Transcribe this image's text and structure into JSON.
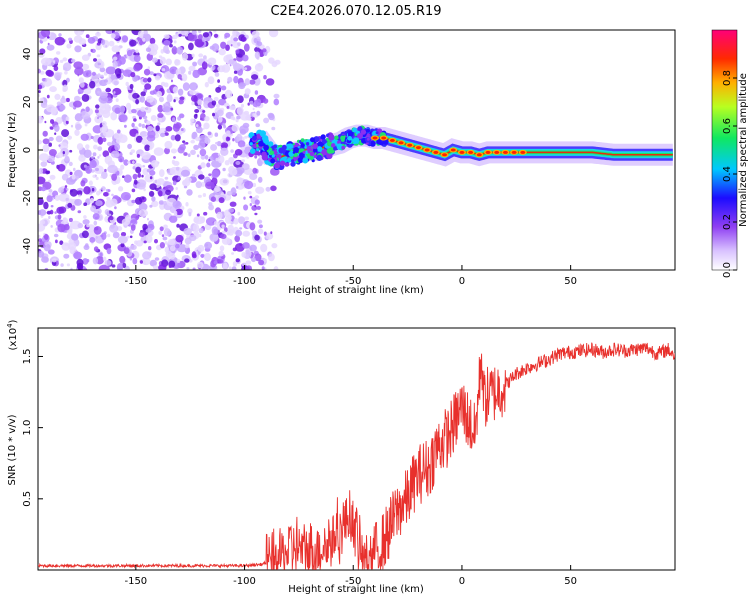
{
  "title": "C2E4.2026.070.12.05.R19",
  "chart_data": [
    {
      "type": "heatmap",
      "xlabel": "Height of straight line (km)",
      "ylabel": "Frequency (Hz)",
      "xlim": [
        -195,
        98
      ],
      "ylim": [
        -50,
        50
      ],
      "xticks": [
        -150,
        -100,
        -50,
        0,
        50
      ],
      "yticks": [
        -40,
        -20,
        0,
        20,
        40
      ],
      "colorbar": {
        "label": "Normalized spectral amplitude",
        "range": [
          0,
          1
        ],
        "ticks": [
          "0.0",
          "0.2",
          "0.4",
          "0.6",
          "0.8"
        ]
      },
      "ridge": {
        "x": [
          -97,
          -92,
          -88,
          -84,
          -80,
          -76,
          -72,
          -68,
          -64,
          -60,
          -56,
          -52,
          -48,
          -44,
          -40,
          -36,
          -32,
          -28,
          -24,
          -20,
          -16,
          -12,
          -8,
          -4,
          0,
          4,
          8,
          12,
          16,
          20,
          30,
          40,
          50,
          60,
          70,
          80,
          90,
          97
        ],
        "frequency": [
          2,
          3,
          -2,
          -3,
          -2,
          -1,
          0,
          0,
          1,
          2,
          3,
          5,
          6,
          6,
          5,
          5,
          4,
          3,
          2,
          1,
          0,
          -1,
          -2,
          0,
          -1,
          -1,
          -2,
          -1,
          -1,
          -1,
          -1,
          -1,
          -1,
          -1,
          -2,
          -2,
          -2,
          -2
        ]
      }
    },
    {
      "type": "line",
      "xlabel": "Height of straight line (km)",
      "ylabel": "SNR (10 * v/v)",
      "multiplier": "(x10",
      "multiplier_exp": "4",
      "xlim": [
        -195,
        98
      ],
      "ylim": [
        0,
        1.7
      ],
      "xticks": [
        -150,
        -100,
        -50,
        0,
        50
      ],
      "yticks": [
        "0.5",
        "1.0",
        "1.5"
      ],
      "color": "#e8302c",
      "series": [
        {
          "name": "SNR",
          "x": [
            -195,
            -180,
            -160,
            -140,
            -120,
            -100,
            -92,
            -85,
            -80,
            -77,
            -74,
            -70,
            -66,
            -62,
            -58,
            -55,
            -52,
            -50,
            -48,
            -46,
            -43,
            -40,
            -36,
            -33,
            -30,
            -28,
            -25,
            -22,
            -18,
            -15,
            -12,
            -9,
            -6,
            -3,
            0,
            3,
            6,
            8,
            9,
            10,
            12,
            15,
            20,
            25,
            30,
            35,
            40,
            45,
            50,
            55,
            60,
            65,
            70,
            75,
            80,
            85,
            90,
            95,
            98
          ],
          "y": [
            0.03,
            0.03,
            0.03,
            0.03,
            0.03,
            0.03,
            0.04,
            0.08,
            0.14,
            0.18,
            0.13,
            0.12,
            0.15,
            0.18,
            0.25,
            0.3,
            0.38,
            0.35,
            0.2,
            0.08,
            0.1,
            0.12,
            0.2,
            0.3,
            0.4,
            0.45,
            0.5,
            0.62,
            0.7,
            0.72,
            0.85,
            0.9,
            0.95,
            1.05,
            1.15,
            1.05,
            0.95,
            1.3,
            1.55,
            1.2,
            1.22,
            1.25,
            1.3,
            1.38,
            1.42,
            1.45,
            1.48,
            1.52,
            1.53,
            1.54,
            1.55,
            1.53,
            1.55,
            1.54,
            1.55,
            1.56,
            1.52,
            1.55,
            1.5
          ]
        }
      ]
    }
  ]
}
